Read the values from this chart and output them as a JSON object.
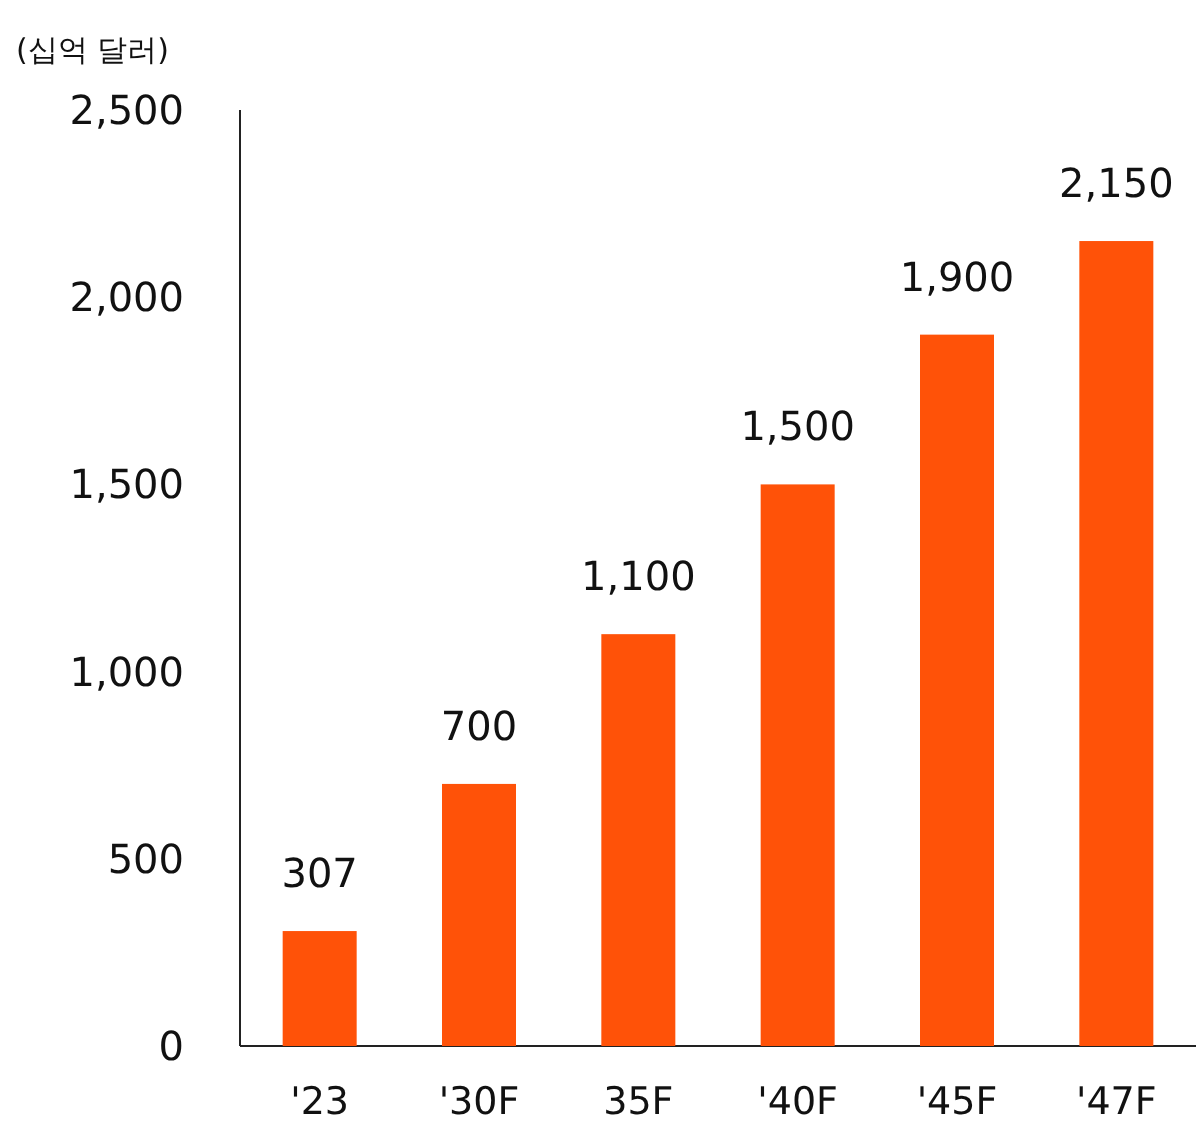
{
  "chart_data": {
    "type": "bar",
    "ylabel": "(십억 달러)",
    "categories": [
      "'23",
      "'30F",
      "35F",
      "'40F",
      "'45F",
      "'47F"
    ],
    "values": [
      307,
      700,
      1100,
      1500,
      1900,
      2150
    ],
    "value_labels": [
      "307",
      "700",
      "1,100",
      "1,500",
      "1,900",
      "2,150"
    ],
    "color": "#ff5208",
    "ylim": [
      0,
      2500
    ],
    "yticks": [
      0,
      500,
      {
        "value": 1000,
        "label": "1,000"
      },
      {
        "value": 1500,
        "label": "1,500"
      },
      {
        "value": 2000,
        "label": "2,000"
      },
      {
        "value": 2500,
        "label": "2,500"
      }
    ]
  }
}
